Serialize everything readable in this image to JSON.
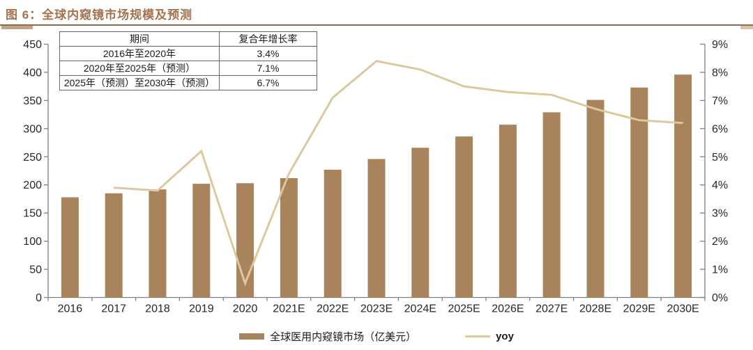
{
  "figure": {
    "title": "图 6：全球内窥镜市场规模及预测"
  },
  "cagr_table": {
    "headers": [
      "期间",
      "复合年增长率"
    ],
    "rows": [
      [
        "2016年至2020年",
        "3.4%"
      ],
      [
        "2020年至2025年（预测）",
        "7.1%"
      ],
      [
        "2025年（预测）至2030年（预测）",
        "6.7%"
      ]
    ]
  },
  "chart_data": {
    "type": "bar",
    "title": "全球内窥镜市场规模及预测",
    "categories": [
      "2016",
      "2017",
      "2018",
      "2019",
      "2020",
      "2021E",
      "2022E",
      "2023E",
      "2024E",
      "2025E",
      "2026E",
      "2027E",
      "2028E",
      "2029E",
      "2030E"
    ],
    "series": [
      {
        "name": "全球医用内窥镜市场（亿美元）",
        "type": "bar",
        "axis": "left",
        "color": "#A9835B",
        "values": [
          178,
          185,
          192,
          202,
          203,
          212,
          227,
          246,
          266,
          286,
          307,
          329,
          351,
          373,
          396
        ]
      },
      {
        "name": "yoy",
        "type": "line",
        "axis": "right",
        "color": "#DCC89E",
        "values": [
          null,
          3.9,
          3.8,
          5.2,
          0.5,
          4.4,
          7.1,
          8.4,
          8.1,
          7.5,
          7.3,
          7.2,
          6.7,
          6.3,
          6.2
        ]
      }
    ],
    "left_axis": {
      "min": 0,
      "max": 450,
      "step": 50,
      "ticks": [
        "0",
        "50",
        "100",
        "150",
        "200",
        "250",
        "300",
        "350",
        "400",
        "450"
      ]
    },
    "right_axis": {
      "min": 0,
      "max": 9,
      "step": 1,
      "ticks": [
        "0%",
        "1%",
        "2%",
        "3%",
        "4%",
        "5%",
        "6%",
        "7%",
        "8%",
        "9%"
      ]
    },
    "grid": false,
    "legend_position": "bottom"
  },
  "colors": {
    "bar": "#A9835B",
    "line": "#DCC89E",
    "axis": "#7F7F7F",
    "axis_text": "#262626",
    "title": "#A3734F",
    "rule": "#8F6A4C"
  }
}
